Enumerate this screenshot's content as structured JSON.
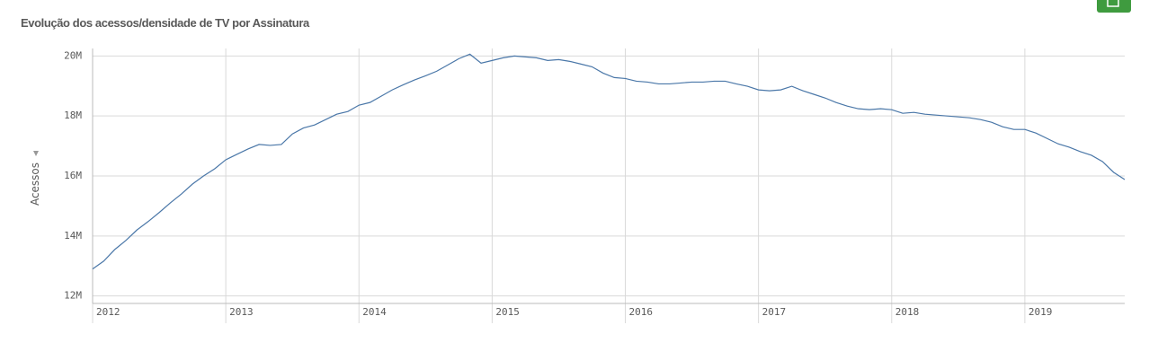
{
  "chart_data": {
    "type": "line",
    "title": "Evolução dos acessos/densidade de TV por Assinatura",
    "y_label": "Acessos",
    "color": "#4a77a8",
    "grid": true,
    "x": [
      2012,
      2012.083,
      2012.167,
      2012.25,
      2012.333,
      2012.417,
      2012.5,
      2012.583,
      2012.667,
      2012.75,
      2012.833,
      2012.917,
      2013,
      2013.083,
      2013.167,
      2013.25,
      2013.333,
      2013.417,
      2013.5,
      2013.583,
      2013.667,
      2013.75,
      2013.833,
      2013.917,
      2014,
      2014.083,
      2014.167,
      2014.25,
      2014.333,
      2014.417,
      2014.5,
      2014.583,
      2014.667,
      2014.75,
      2014.833,
      2014.917,
      2015,
      2015.083,
      2015.167,
      2015.25,
      2015.333,
      2015.417,
      2015.5,
      2015.583,
      2015.667,
      2015.75,
      2015.833,
      2015.917,
      2016,
      2016.083,
      2016.167,
      2016.25,
      2016.333,
      2016.417,
      2016.5,
      2016.583,
      2016.667,
      2016.75,
      2016.833,
      2016.917,
      2017,
      2017.083,
      2017.167,
      2017.25,
      2017.333,
      2017.417,
      2017.5,
      2017.583,
      2017.667,
      2017.75,
      2017.833,
      2017.917,
      2018,
      2018.083,
      2018.167,
      2018.25,
      2018.333,
      2018.417,
      2018.5,
      2018.583,
      2018.667,
      2018.75,
      2018.833,
      2018.917,
      2019,
      2019.083,
      2019.167,
      2019.25,
      2019.333,
      2019.417,
      2019.5,
      2019.583,
      2019.667,
      2019.75
    ],
    "values": [
      12900000,
      13160000,
      13550000,
      13850000,
      14200000,
      14480000,
      14780000,
      15100000,
      15400000,
      15730000,
      16000000,
      16240000,
      16540000,
      16720000,
      16900000,
      17050000,
      17020000,
      17050000,
      17400000,
      17600000,
      17700000,
      17880000,
      18060000,
      18150000,
      18360000,
      18450000,
      18660000,
      18870000,
      19040000,
      19200000,
      19340000,
      19490000,
      19700000,
      19910000,
      20060000,
      19760000,
      19850000,
      19940000,
      20000000,
      19970000,
      19940000,
      19850000,
      19880000,
      19820000,
      19730000,
      19640000,
      19430000,
      19280000,
      19250000,
      19160000,
      19130000,
      19070000,
      19070000,
      19100000,
      19130000,
      19130000,
      19160000,
      19160000,
      19070000,
      18990000,
      18870000,
      18840000,
      18870000,
      18990000,
      18840000,
      18720000,
      18600000,
      18450000,
      18330000,
      18240000,
      18210000,
      18240000,
      18210000,
      18090000,
      18120000,
      18060000,
      18030000,
      18000000,
      17970000,
      17940000,
      17880000,
      17790000,
      17640000,
      17550000,
      17550000,
      17430000,
      17250000,
      17070000,
      16960000,
      16810000,
      16690000,
      16480000,
      16120000,
      15880000
    ],
    "xlim": [
      2012,
      2019.75
    ],
    "xticks": [
      2012,
      2013,
      2014,
      2015,
      2016,
      2017,
      2018,
      2019
    ],
    "ylim": [
      11750000,
      20250000
    ],
    "yticks": [
      {
        "value": 12000000,
        "label": "12M"
      },
      {
        "value": 14000000,
        "label": "14M"
      },
      {
        "value": 16000000,
        "label": "16M"
      },
      {
        "value": 18000000,
        "label": "18M"
      },
      {
        "value": 20000000,
        "label": "20M"
      }
    ]
  }
}
